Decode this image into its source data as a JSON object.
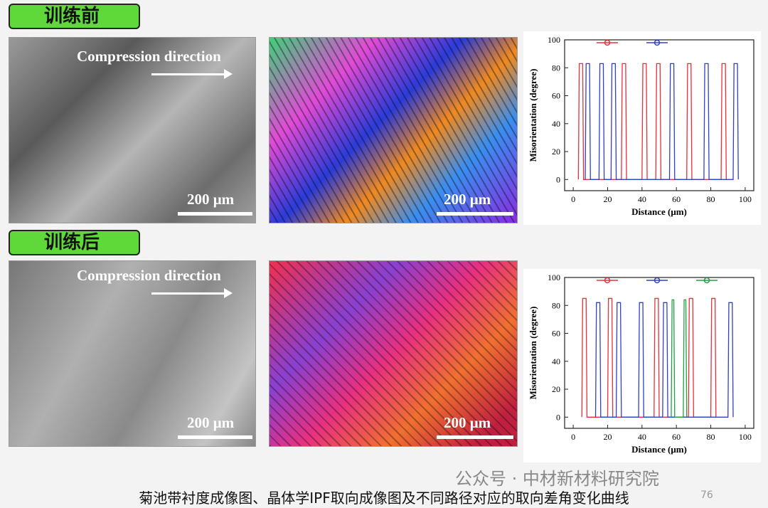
{
  "sections": [
    {
      "label": "训练前",
      "sem_caption": "Compression direction",
      "sem_scale": "200 μm",
      "ipf_scale": "200 μm"
    },
    {
      "label": "训练后",
      "sem_caption": "Compression direction",
      "sem_scale": "200 μm",
      "ipf_scale": "200 μm"
    }
  ],
  "chart_data": [
    {
      "type": "line",
      "x_label": "Distance (μm)",
      "y_label": "Misorientation (degree)",
      "xlim": [
        -5,
        105
      ],
      "ylim": [
        -8,
        100
      ],
      "xticks": [
        0,
        20,
        40,
        60,
        80,
        100
      ],
      "yticks": [
        0,
        20,
        40,
        60,
        80,
        100
      ],
      "series": [
        {
          "color": "#e8303a",
          "x": [
            3,
            3.5,
            5.5,
            6,
            28,
            28.5,
            30.5,
            31,
            40,
            40.5,
            42.5,
            43,
            48,
            48.5,
            50.5,
            51,
            66,
            66.5,
            68.5,
            69,
            86,
            86.5,
            88.5,
            89
          ],
          "values": [
            0,
            83,
            83,
            0,
            0,
            83,
            83,
            0,
            0,
            83,
            83,
            0,
            0,
            83,
            83,
            0,
            0,
            83,
            83,
            0,
            0,
            83,
            83,
            0
          ]
        },
        {
          "color": "#3040c8",
          "x": [
            7,
            7.5,
            9.5,
            10,
            15,
            15.5,
            17.5,
            18,
            22,
            22.5,
            24.5,
            25,
            56,
            56.5,
            58.5,
            59,
            76,
            76.5,
            78.5,
            79,
            93,
            93.5,
            95.5,
            96
          ],
          "values": [
            0,
            83,
            83,
            0,
            0,
            83,
            83,
            0,
            0,
            83,
            83,
            0,
            0,
            83,
            83,
            0,
            0,
            83,
            83,
            0,
            0,
            83,
            83,
            0
          ]
        }
      ]
    },
    {
      "type": "line",
      "x_label": "Distance (μm)",
      "y_label": "Misorientation (degree)",
      "xlim": [
        -5,
        105
      ],
      "ylim": [
        -8,
        100
      ],
      "xticks": [
        0,
        20,
        40,
        60,
        80,
        100
      ],
      "yticks": [
        0,
        20,
        40,
        60,
        80,
        100
      ],
      "series": [
        {
          "color": "#e8303a",
          "x": [
            5,
            5.5,
            7.5,
            8,
            20,
            20.5,
            22.5,
            23,
            47,
            47.5,
            49.5,
            50,
            67,
            67.5,
            69.5,
            70,
            80,
            80.5,
            82.5,
            83
          ],
          "values": [
            0,
            85,
            85,
            0,
            0,
            85,
            85,
            0,
            0,
            85,
            85,
            0,
            0,
            85,
            85,
            0,
            0,
            85,
            85,
            0
          ]
        },
        {
          "color": "#3040c8",
          "x": [
            13,
            13.5,
            15.5,
            16,
            25,
            25.5,
            27.5,
            28,
            38,
            38.5,
            40.5,
            41,
            52,
            52.5,
            54.5,
            55,
            90,
            90.5,
            92.5,
            93
          ],
          "values": [
            0,
            82,
            82,
            0,
            0,
            82,
            82,
            0,
            0,
            82,
            82,
            0,
            0,
            82,
            82,
            0,
            0,
            82,
            82,
            0
          ]
        },
        {
          "color": "#20a040",
          "x": [
            57,
            57.5,
            58.5,
            59,
            64,
            64.5,
            65.5,
            66
          ],
          "values": [
            0,
            84,
            84,
            0,
            0,
            84,
            84,
            0
          ]
        }
      ]
    }
  ],
  "footer": {
    "caption": "菊池带衬度成像图、晶体学IPF取向成像图及不同路径对应的取向差角变化曲线",
    "page": "76",
    "watermark": "公众号 · 中材新材料研究院"
  }
}
